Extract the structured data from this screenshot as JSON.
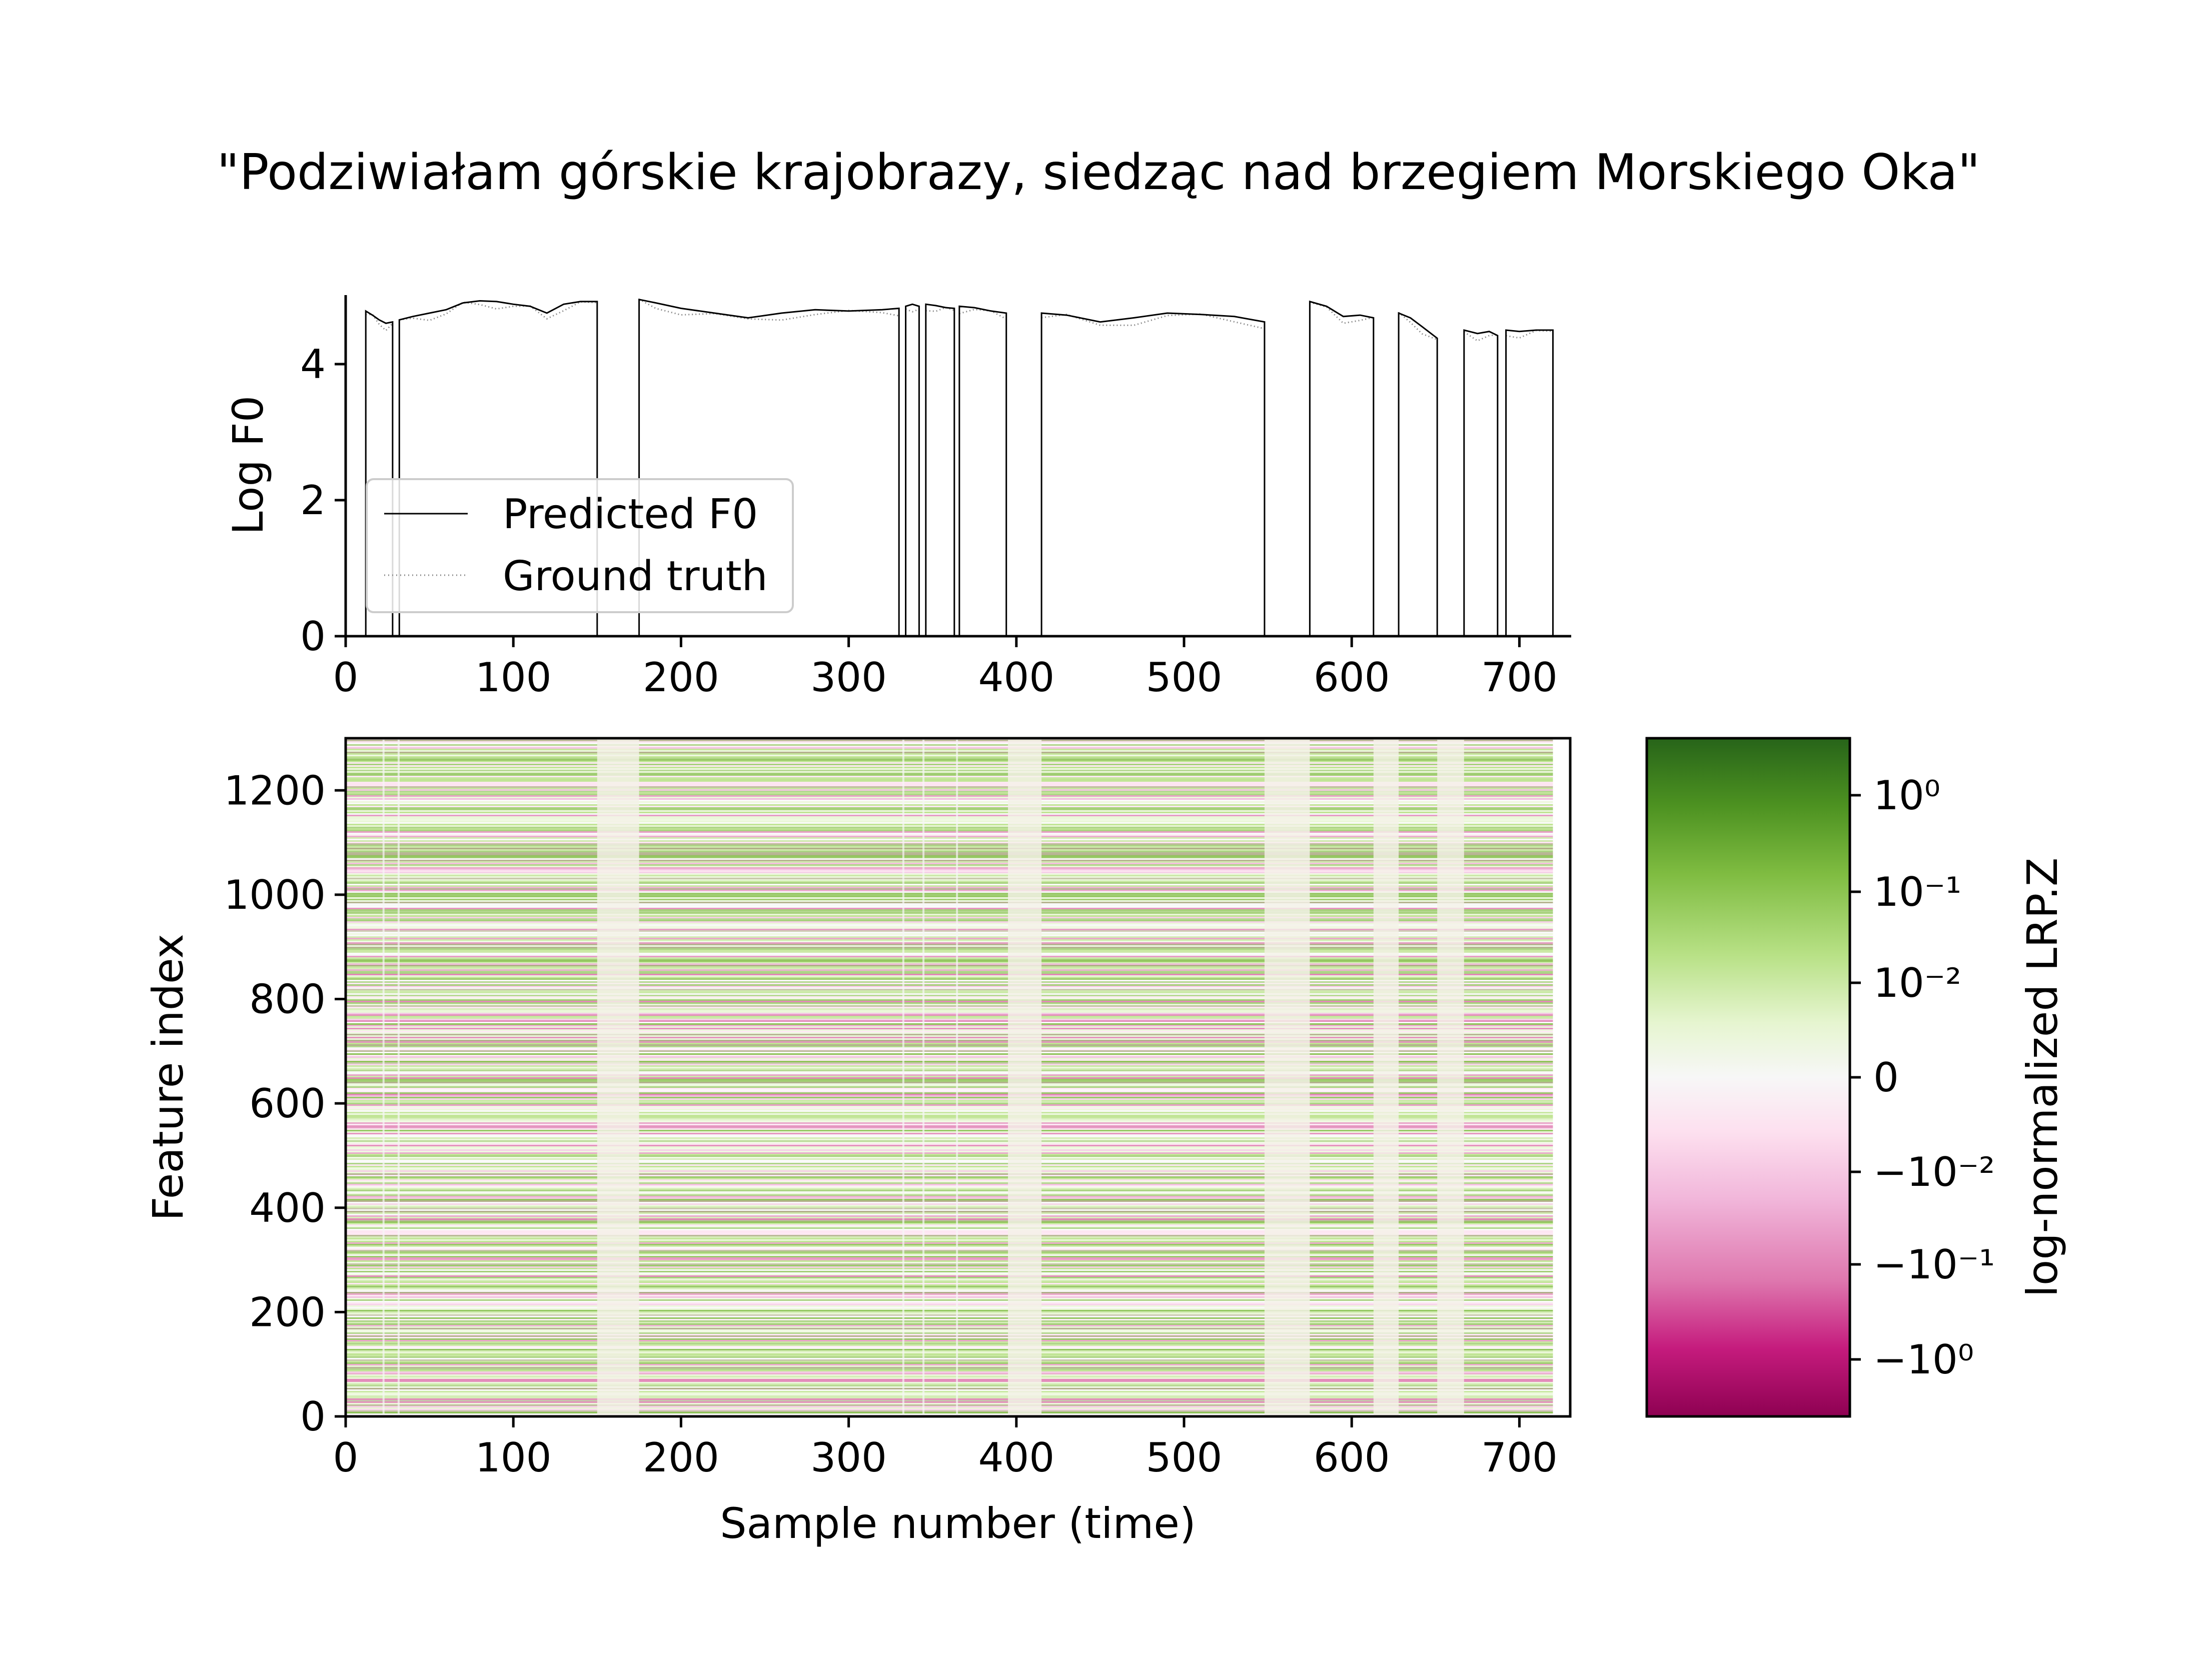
{
  "figure": {
    "title": "\"Podziwiałam górskie krajobrazy, siedząc nad brzegiem Morskiego Oka\""
  },
  "chart_data": [
    {
      "type": "line",
      "ylabel": "Log F0",
      "xlabel": "",
      "xlim": [
        0,
        732
      ],
      "ylim": [
        0,
        5
      ],
      "x_ticks": [
        "0",
        "100",
        "200",
        "300",
        "400",
        "500",
        "600",
        "700"
      ],
      "y_ticks": [
        "0",
        "2",
        "4"
      ],
      "legend": {
        "placement": "lower-left",
        "entries": [
          "Predicted F0",
          "Ground truth"
        ]
      },
      "colors": {
        "predicted": "#000000",
        "ground_truth": "#8a8a8a"
      },
      "voiced_segments": [
        {
          "start": 12,
          "end": 28,
          "x": [
            12,
            16,
            20,
            24,
            28
          ],
          "y": [
            4.78,
            4.72,
            4.65,
            4.6,
            4.62
          ]
        },
        {
          "start": 32,
          "end": 150,
          "x": [
            32,
            40,
            50,
            60,
            70,
            80,
            90,
            100,
            110,
            120,
            130,
            140,
            150
          ],
          "y": [
            4.65,
            4.7,
            4.75,
            4.8,
            4.9,
            4.93,
            4.92,
            4.88,
            4.85,
            4.75,
            4.88,
            4.92,
            4.92
          ]
        },
        {
          "start": 175,
          "end": 330,
          "x": [
            175,
            185,
            200,
            220,
            240,
            260,
            280,
            300,
            320,
            330
          ],
          "y": [
            4.95,
            4.9,
            4.82,
            4.75,
            4.68,
            4.75,
            4.8,
            4.78,
            4.8,
            4.82
          ]
        },
        {
          "start": 334,
          "end": 342,
          "x": [
            334,
            338,
            342
          ],
          "y": [
            4.85,
            4.88,
            4.85
          ]
        },
        {
          "start": 346,
          "end": 363,
          "x": [
            346,
            352,
            358,
            363
          ],
          "y": [
            4.88,
            4.86,
            4.83,
            4.82
          ]
        },
        {
          "start": 366,
          "end": 394,
          "x": [
            366,
            375,
            385,
            394
          ],
          "y": [
            4.85,
            4.83,
            4.78,
            4.75
          ]
        },
        {
          "start": 415,
          "end": 548,
          "x": [
            415,
            430,
            450,
            470,
            490,
            510,
            530,
            548
          ],
          "y": [
            4.75,
            4.72,
            4.62,
            4.68,
            4.75,
            4.73,
            4.7,
            4.62
          ]
        },
        {
          "start": 575,
          "end": 613,
          "x": [
            575,
            585,
            595,
            605,
            613
          ],
          "y": [
            4.92,
            4.85,
            4.7,
            4.72,
            4.68
          ]
        },
        {
          "start": 628,
          "end": 651,
          "x": [
            628,
            635,
            642,
            651
          ],
          "y": [
            4.75,
            4.68,
            4.55,
            4.38
          ]
        },
        {
          "start": 667,
          "end": 687,
          "x": [
            667,
            675,
            682,
            687
          ],
          "y": [
            4.5,
            4.45,
            4.48,
            4.42
          ]
        },
        {
          "start": 692,
          "end": 720,
          "x": [
            692,
            700,
            710,
            720
          ],
          "y": [
            4.5,
            4.48,
            4.5,
            4.5
          ]
        }
      ]
    },
    {
      "type": "heatmap",
      "xlabel": "Sample number (time)",
      "ylabel": "Feature index",
      "xlim": [
        0,
        732
      ],
      "ylim": [
        0,
        1300
      ],
      "x_ticks": [
        "0",
        "100",
        "200",
        "300",
        "400",
        "500",
        "600",
        "700"
      ],
      "y_ticks": [
        "0",
        "200",
        "400",
        "600",
        "800",
        "1000",
        "1200"
      ],
      "data_x_extent": [
        0,
        720
      ],
      "pale_unvoiced_intervals": [
        [
          150,
          175
        ],
        [
          395,
          415
        ],
        [
          548,
          575
        ],
        [
          613,
          628
        ],
        [
          651,
          667
        ]
      ],
      "colorbar": {
        "label": "log-normalized LRP.Z",
        "ticks": [
          "10⁰",
          "10⁻¹",
          "10⁻²",
          "0",
          "−10⁻²",
          "−10⁻¹",
          "−10⁰"
        ],
        "colormap": "PiYG",
        "colors": [
          "#8e0152",
          "#c51b7d",
          "#de77ae",
          "#f1b6da",
          "#fde0ef",
          "#f7f7f7",
          "#e6f5d0",
          "#b8e186",
          "#7fbc41",
          "#4d9221",
          "#276419"
        ]
      }
    }
  ]
}
